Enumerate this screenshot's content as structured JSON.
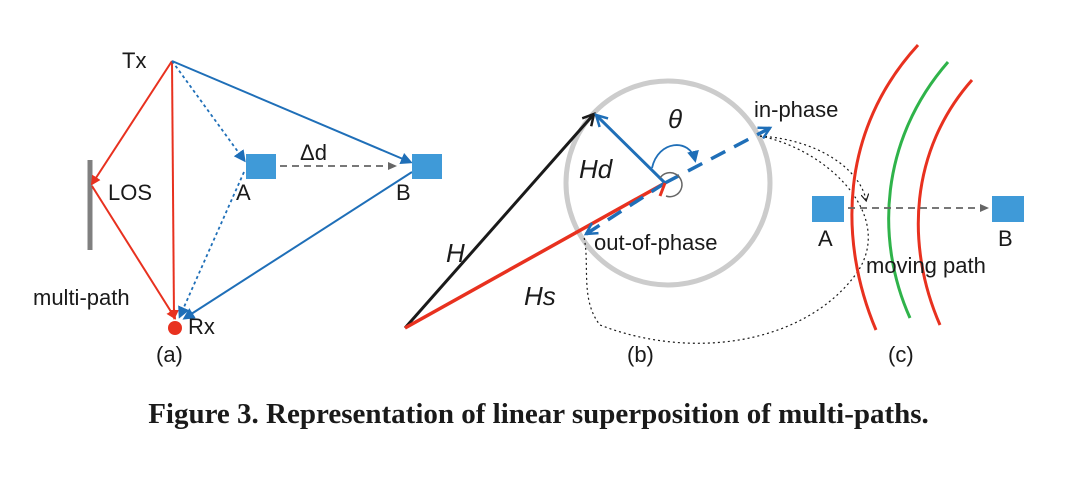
{
  "panel_a": {
    "tx": "Tx",
    "rx": "Rx",
    "los": "LOS",
    "multipath": "multi-path",
    "point_a": "A",
    "point_b": "B",
    "delta_d": "Δd",
    "label": "(a)"
  },
  "panel_b": {
    "h": "H",
    "hd": "Hd",
    "hs": "Hs",
    "theta": "θ",
    "in_phase": "in-phase",
    "out_of_phase": "out-of-phase",
    "label": "(b)"
  },
  "panel_c": {
    "point_a": "A",
    "point_b": "B",
    "moving_path": "moving path",
    "label": "(c)"
  },
  "caption": "Figure 3. Representation of linear superposition of multi-paths.",
  "colors": {
    "red": "#e8311f",
    "blue": "#1f6fb8",
    "block": "#3f9ad8",
    "green": "#2fb34a",
    "wall": "#808080",
    "circle": "#cccccc",
    "black": "#1a1a1a"
  }
}
